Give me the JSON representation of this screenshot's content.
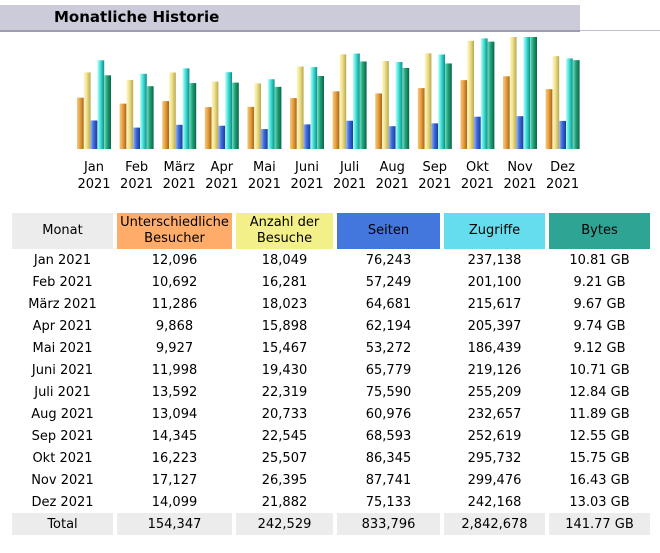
{
  "header": {
    "title": "Monatliche Historie"
  },
  "colors": {
    "visitors": "#e8a040",
    "visits": "#eee08a",
    "pages": "#3c6ad8",
    "hits": "#40e0d8",
    "bytes": "#22a07a",
    "title_bg": "#cccbd9"
  },
  "table": {
    "headers": [
      "Monat",
      "Unterschiedliche Besucher",
      "Anzahl der Besuche",
      "Seiten",
      "Zugriffe",
      "Bytes"
    ],
    "rows": [
      [
        "Jan 2021",
        "12,096",
        "18,049",
        "76,243",
        "237,138",
        "10.81 GB"
      ],
      [
        "Feb 2021",
        "10,692",
        "16,281",
        "57,249",
        "201,100",
        "9.21 GB"
      ],
      [
        "März 2021",
        "11,286",
        "18,023",
        "64,681",
        "215,617",
        "9.67 GB"
      ],
      [
        "Apr 2021",
        "9,868",
        "15,898",
        "62,194",
        "205,397",
        "9.74 GB"
      ],
      [
        "Mai 2021",
        "9,927",
        "15,467",
        "53,272",
        "186,439",
        "9.12 GB"
      ],
      [
        "Juni 2021",
        "11,998",
        "19,430",
        "65,779",
        "219,126",
        "10.71 GB"
      ],
      [
        "Juli 2021",
        "13,592",
        "22,319",
        "75,590",
        "255,209",
        "12.84 GB"
      ],
      [
        "Aug 2021",
        "13,094",
        "20,733",
        "60,976",
        "232,657",
        "11.89 GB"
      ],
      [
        "Sep 2021",
        "14,345",
        "22,545",
        "68,593",
        "252,619",
        "12.55 GB"
      ],
      [
        "Okt 2021",
        "16,223",
        "25,507",
        "86,345",
        "295,732",
        "15.75 GB"
      ],
      [
        "Nov 2021",
        "17,127",
        "26,395",
        "87,741",
        "299,476",
        "16.43 GB"
      ],
      [
        "Dez 2021",
        "14,099",
        "21,882",
        "75,133",
        "242,168",
        "13.03 GB"
      ]
    ],
    "total": [
      "Total",
      "154,347",
      "242,529",
      "833,796",
      "2,842,678",
      "141.77 GB"
    ]
  },
  "chart_data": {
    "type": "bar",
    "categories": [
      [
        "Jan",
        "2021"
      ],
      [
        "Feb",
        "2021"
      ],
      [
        "März",
        "2021"
      ],
      [
        "Apr",
        "2021"
      ],
      [
        "Mai",
        "2021"
      ],
      [
        "Juni",
        "2021"
      ],
      [
        "Juli",
        "2021"
      ],
      [
        "Aug",
        "2021"
      ],
      [
        "Sep",
        "2021"
      ],
      [
        "Okt",
        "2021"
      ],
      [
        "Nov",
        "2021"
      ],
      [
        "Dez",
        "2021"
      ]
    ],
    "series": [
      {
        "key": "visitors",
        "values": [
          12096,
          10692,
          11286,
          9868,
          9927,
          11998,
          13592,
          13094,
          14345,
          16223,
          17127,
          14099
        ]
      },
      {
        "key": "visits",
        "values": [
          18049,
          16281,
          18023,
          15898,
          15467,
          19430,
          22319,
          20733,
          22545,
          25507,
          26395,
          21882
        ]
      },
      {
        "key": "pages",
        "values": [
          76243,
          57249,
          64681,
          62194,
          53272,
          65779,
          75590,
          60976,
          68593,
          86345,
          87741,
          75133
        ]
      },
      {
        "key": "hits",
        "values": [
          237138,
          201100,
          215617,
          205397,
          186439,
          219126,
          255209,
          232657,
          252619,
          295732,
          299476,
          242168
        ]
      },
      {
        "key": "bytes",
        "values": [
          10.81,
          9.21,
          9.67,
          9.74,
          9.12,
          10.71,
          12.84,
          11.89,
          12.55,
          15.75,
          16.43,
          13.03
        ]
      }
    ],
    "scale_groups": [
      [
        "visitors",
        "visits"
      ],
      [
        "pages",
        "hits"
      ],
      [
        "bytes"
      ]
    ],
    "legend": "none",
    "grid": false
  }
}
